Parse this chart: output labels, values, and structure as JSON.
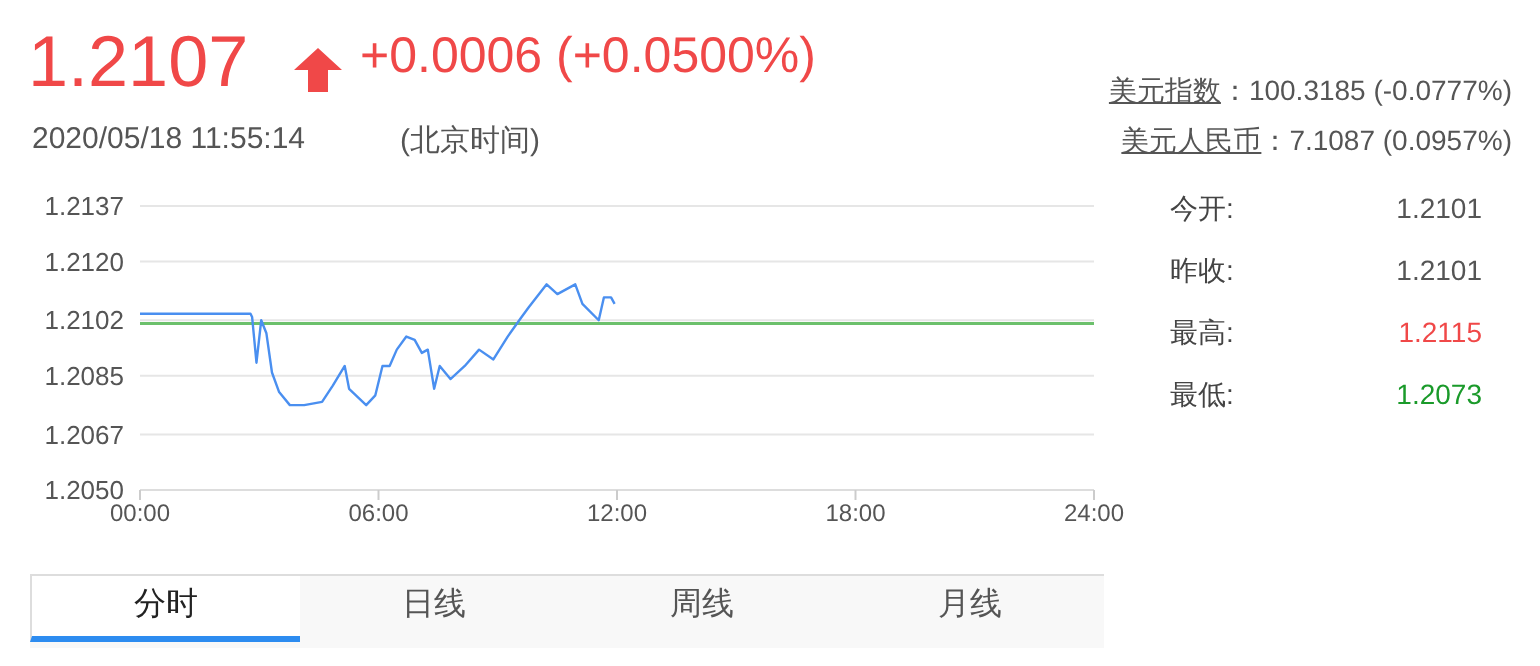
{
  "chart_data": {
    "type": "line",
    "title": "1.2107",
    "subtitle": "+0.0006 (+0.0500%)",
    "annotations": [
      "2020/05/18 11:55:14",
      "(北京时间)",
      "美元指数",
      "：100.3185 (-0.0777%)",
      "美元人民币",
      "：7.1087 (0.0957%)",
      "今开:",
      "1.2101",
      "昨收:",
      "1.2101",
      "最高:",
      "1.2115",
      "最低:",
      "1.2073",
      "分时",
      "日线",
      "周线",
      "月线"
    ],
    "x": [
      0,
      2.78,
      2.82,
      2.93,
      3.05,
      3.18,
      3.32,
      3.5,
      3.77,
      4.13,
      4.58,
      4.85,
      5.15,
      5.26,
      5.69,
      5.92,
      6.1,
      6.28,
      6.46,
      6.7,
      6.91,
      7.09,
      7.24,
      7.4,
      7.54,
      7.81,
      8.17,
      8.53,
      8.89,
      9.25,
      9.6,
      9.78,
      10.23,
      10.5,
      10.95,
      11.13,
      11.54,
      11.67,
      11.85,
      11.94
    ],
    "series": [
      {
        "color": "#4a8ff0",
        "values": [
          1.2104,
          1.2104,
          1.2103,
          1.2089,
          1.2102,
          1.2098,
          1.2086,
          1.208,
          1.2076,
          1.2076,
          1.2077,
          1.2082,
          1.2088,
          1.2081,
          1.2076,
          1.2079,
          1.2088,
          1.2088,
          1.2093,
          1.2097,
          1.2096,
          1.2092,
          1.2093,
          1.2081,
          1.2088,
          1.2084,
          1.2088,
          1.2093,
          1.209,
          1.2097,
          1.2103,
          1.2106,
          1.2113,
          1.211,
          1.2113,
          1.2107,
          1.2102,
          1.2109,
          1.2109,
          1.2107
        ]
      }
    ],
    "ref_lines": [
      {
        "axis": "y",
        "value": 1.2101,
        "color": "#6cc06c"
      }
    ],
    "xlim": [
      0,
      24
    ],
    "xticks": [
      {
        "value": 0,
        "label": "00:00"
      },
      {
        "value": 6,
        "label": "06:00"
      },
      {
        "value": 12,
        "label": "12:00"
      },
      {
        "value": 18,
        "label": "18:00"
      },
      {
        "value": 24,
        "label": "24:00"
      }
    ],
    "ylim": [
      1.205,
      1.2137
    ],
    "yticks": [
      {
        "value": 1.205,
        "label": "1.2050"
      },
      1.2067,
      1.2085,
      1.2102,
      {
        "value": 1.212,
        "label": "1.2120"
      },
      1.2137
    ],
    "grid": "y",
    "marker": "none",
    "line_style": "solid"
  }
}
